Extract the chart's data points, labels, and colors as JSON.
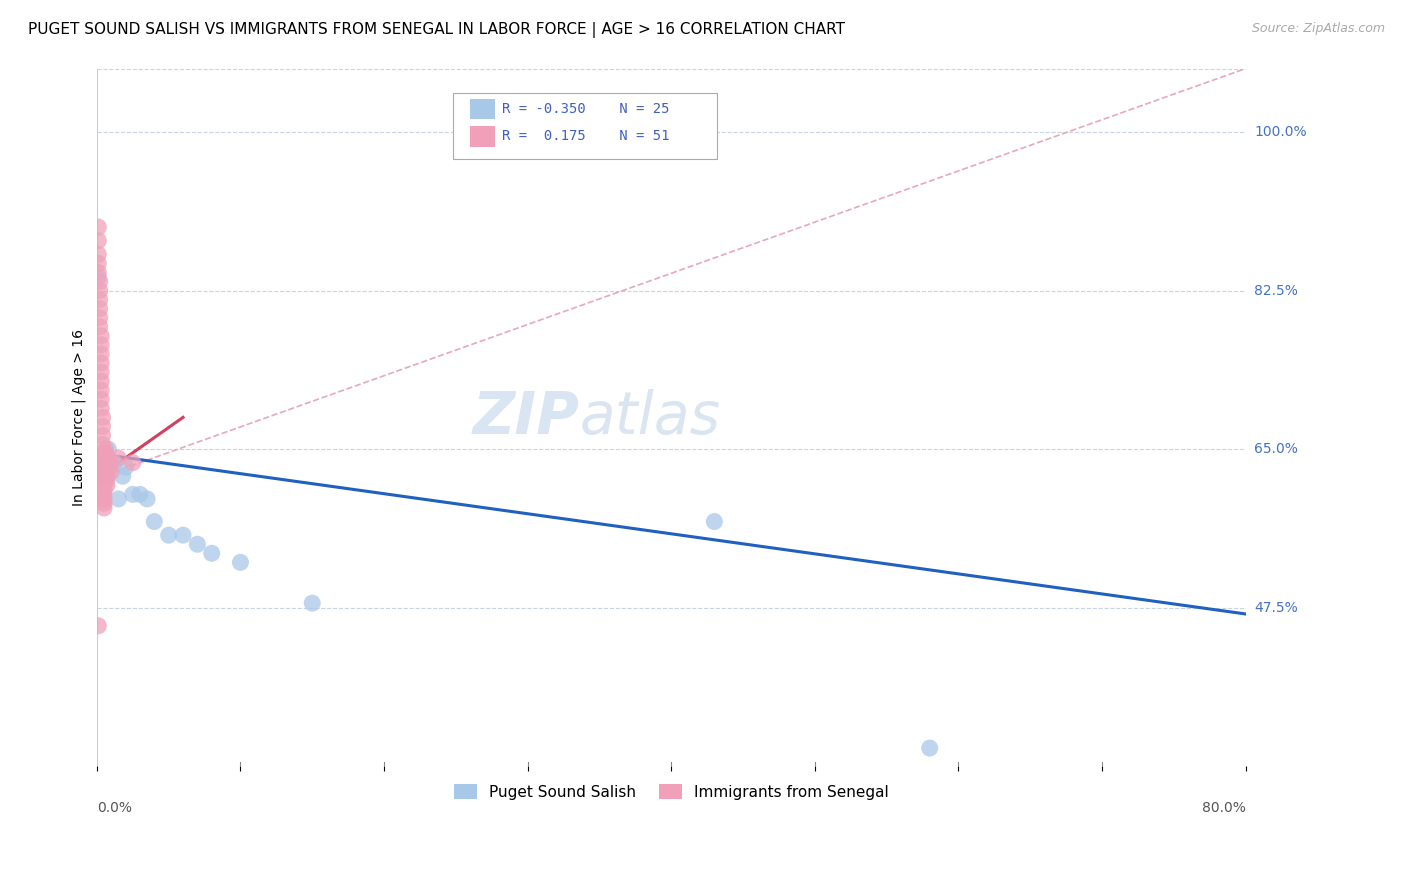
{
  "title": "PUGET SOUND SALISH VS IMMIGRANTS FROM SENEGAL IN LABOR FORCE | AGE > 16 CORRELATION CHART",
  "source": "Source: ZipAtlas.com",
  "ylabel": "In Labor Force | Age > 16",
  "ytick_labels": [
    "100.0%",
    "82.5%",
    "65.0%",
    "47.5%"
  ],
  "ytick_values": [
    1.0,
    0.825,
    0.65,
    0.475
  ],
  "xlim": [
    0.0,
    0.8
  ],
  "ylim": [
    0.3,
    1.07
  ],
  "watermark_zip": "ZIP",
  "watermark_atlas": "atlas",
  "blue_label": "Puget Sound Salish",
  "pink_label": "Immigrants from Senegal",
  "blue_R": -0.35,
  "blue_N": 25,
  "pink_R": 0.175,
  "pink_N": 51,
  "blue_color": "#a8c8e8",
  "pink_color": "#f0a0b8",
  "blue_line_color": "#2060c0",
  "pink_line_color": "#d04060",
  "diag_line_color": "#e8a8b8",
  "blue_points_x": [
    0.001,
    0.002,
    0.003,
    0.004,
    0.005,
    0.006,
    0.007,
    0.008,
    0.01,
    0.012,
    0.015,
    0.018,
    0.02,
    0.025,
    0.03,
    0.035,
    0.04,
    0.05,
    0.06,
    0.07,
    0.08,
    0.1,
    0.15,
    0.43,
    0.58
  ],
  "blue_points_y": [
    0.84,
    0.64,
    0.62,
    0.63,
    0.63,
    0.64,
    0.62,
    0.65,
    0.635,
    0.635,
    0.595,
    0.62,
    0.63,
    0.6,
    0.6,
    0.595,
    0.57,
    0.555,
    0.555,
    0.545,
    0.535,
    0.525,
    0.48,
    0.57,
    0.32
  ],
  "pink_points_x": [
    0.001,
    0.001,
    0.001,
    0.001,
    0.001,
    0.002,
    0.002,
    0.002,
    0.002,
    0.002,
    0.002,
    0.003,
    0.003,
    0.003,
    0.003,
    0.003,
    0.003,
    0.003,
    0.003,
    0.003,
    0.004,
    0.004,
    0.004,
    0.004,
    0.004,
    0.004,
    0.005,
    0.005,
    0.005,
    0.005,
    0.005,
    0.005,
    0.005,
    0.005,
    0.005,
    0.006,
    0.006,
    0.006,
    0.006,
    0.006,
    0.006,
    0.007,
    0.007,
    0.007,
    0.008,
    0.008,
    0.008,
    0.01,
    0.015,
    0.025,
    0.001
  ],
  "pink_points_y": [
    0.895,
    0.88,
    0.865,
    0.855,
    0.845,
    0.835,
    0.825,
    0.815,
    0.805,
    0.795,
    0.785,
    0.775,
    0.765,
    0.755,
    0.745,
    0.735,
    0.725,
    0.715,
    0.705,
    0.695,
    0.685,
    0.675,
    0.665,
    0.655,
    0.645,
    0.635,
    0.625,
    0.62,
    0.615,
    0.61,
    0.605,
    0.6,
    0.595,
    0.59,
    0.585,
    0.65,
    0.645,
    0.64,
    0.635,
    0.63,
    0.625,
    0.62,
    0.615,
    0.61,
    0.64,
    0.635,
    0.63,
    0.625,
    0.64,
    0.635,
    0.455
  ],
  "blue_line_x0": 0.0,
  "blue_line_x1": 0.8,
  "blue_line_y0": 0.645,
  "blue_line_y1": 0.468,
  "pink_line_x0": 0.0,
  "pink_line_x1": 0.06,
  "pink_line_y0": 0.618,
  "pink_line_y1": 0.685,
  "diag_line_x0": 0.0,
  "diag_line_x1": 0.8,
  "diag_line_y0": 0.618,
  "diag_line_y1": 1.07,
  "title_fontsize": 11,
  "source_fontsize": 9,
  "legend_fontsize": 11,
  "axis_label_fontsize": 10,
  "tick_fontsize": 10,
  "watermark_fontsize_zip": 42,
  "watermark_fontsize_atlas": 42
}
